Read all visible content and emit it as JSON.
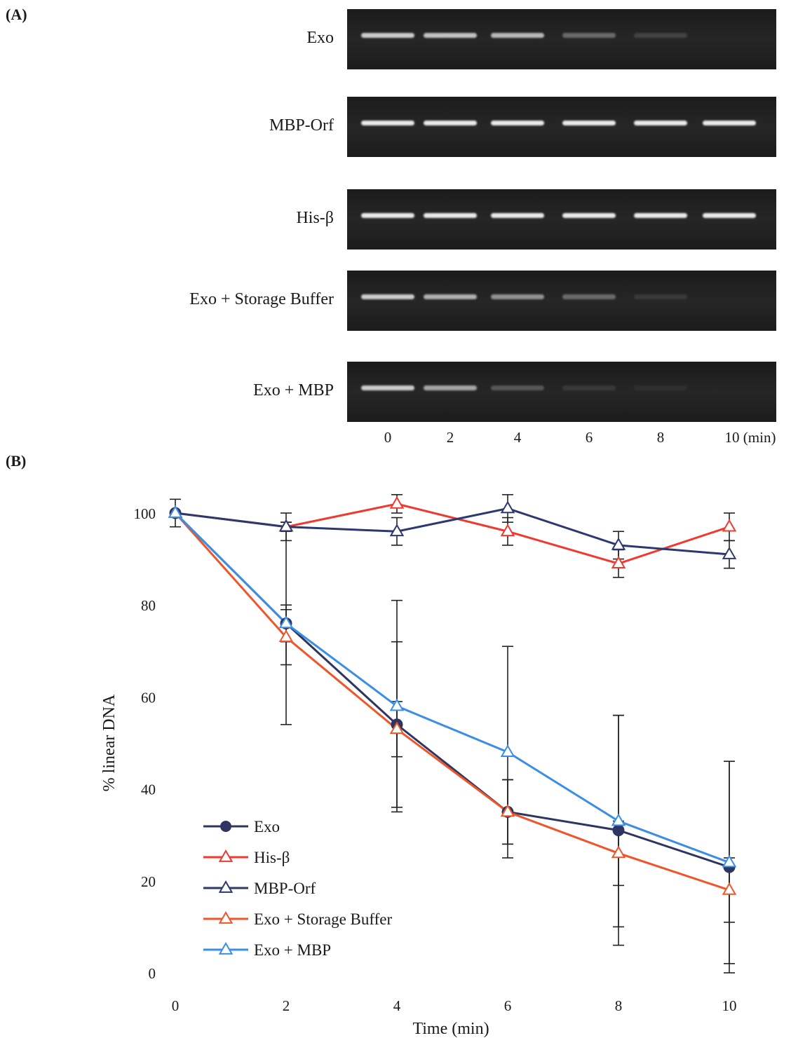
{
  "panel_a": {
    "label": "(A)",
    "gels": [
      {
        "name": "Exo",
        "bands": [
          0.85,
          0.8,
          0.75,
          0.35,
          0.15,
          0.0
        ]
      },
      {
        "name": "MBP-Orf",
        "bands": [
          1.0,
          1.0,
          1.0,
          1.0,
          1.0,
          1.0
        ]
      },
      {
        "name": "His-β",
        "bands": [
          1.0,
          1.0,
          1.0,
          1.0,
          1.0,
          1.0
        ]
      },
      {
        "name": "Exo + Storage Buffer",
        "bands": [
          0.85,
          0.7,
          0.55,
          0.35,
          0.1,
          0.0
        ]
      },
      {
        "name": "Exo + MBP",
        "bands": [
          0.85,
          0.65,
          0.25,
          0.1,
          0.05,
          0.0
        ]
      }
    ],
    "lanes": [
      "0",
      "2",
      "4",
      "6",
      "8",
      "10 (min)"
    ]
  },
  "panel_b": {
    "label": "(B)"
  },
  "chart_data": {
    "type": "line",
    "title": "",
    "xlabel": "Time (min)",
    "ylabel": "% linear DNA",
    "x": [
      0,
      2,
      4,
      6,
      8,
      10
    ],
    "xlim": [
      0,
      10
    ],
    "ylim": [
      0,
      100
    ],
    "xticks": [
      "0",
      "2",
      "4",
      "6",
      "8",
      "10"
    ],
    "yticks": [
      "0",
      "20",
      "40",
      "60",
      "80",
      "100"
    ],
    "grid": false,
    "legend_position": "lower-left",
    "series": [
      {
        "name": "Exo",
        "color": "#2e3560",
        "marker": "filled-circle",
        "values": [
          100,
          76,
          54,
          35,
          31,
          23
        ],
        "err": [
          0,
          22,
          18,
          7,
          25,
          23
        ]
      },
      {
        "name": "His-β",
        "color": "#f0392f",
        "marker": "open-triangle",
        "values": [
          100,
          97,
          102,
          96,
          89,
          97
        ],
        "err": [
          0,
          1,
          2,
          3,
          3,
          3
        ]
      },
      {
        "name": "MBP-Orf",
        "color": "#2c3870",
        "marker": "open-triangle",
        "values": [
          100,
          97,
          96,
          101,
          93,
          91
        ],
        "err": [
          3,
          3,
          3,
          3,
          3,
          3
        ]
      },
      {
        "name": "Exo + Storage Buffer",
        "color": "#f0552a",
        "marker": "open-triangle",
        "values": [
          100,
          73,
          53,
          35,
          26,
          18
        ],
        "err": [
          0,
          6,
          6,
          7,
          7,
          7
        ]
      },
      {
        "name": "Exo + MBP",
        "color": "#3a8ee6",
        "marker": "open-triangle",
        "values": [
          100,
          76,
          58,
          48,
          33,
          24
        ],
        "err": [
          0,
          4,
          23,
          23,
          23,
          22
        ]
      }
    ]
  }
}
